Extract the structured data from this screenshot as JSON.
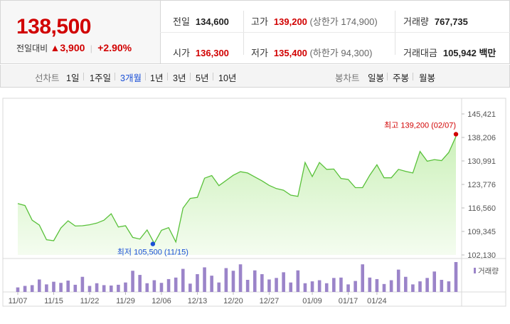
{
  "quote": {
    "price": "138,500",
    "change_label": "전일대비",
    "change_abs": "3,900",
    "change_pct": "+2.90%",
    "prev_close_label": "전일",
    "prev_close": "134,600",
    "high_label": "고가",
    "high": "139,200",
    "upper_limit": "(상한가 174,900)",
    "volume_label": "거래량",
    "volume": "767,735",
    "open_label": "시가",
    "open": "136,300",
    "low_label": "저가",
    "low": "135,400",
    "lower_limit": "(하한가 94,300)",
    "amount_label": "거래대금",
    "amount": "105,942",
    "amount_unit": "백만"
  },
  "toolbar": {
    "line_label": "선차트",
    "periods": [
      "1일",
      "1주일",
      "3개월",
      "1년",
      "3년",
      "5년",
      "10년"
    ],
    "active_period": "3개월",
    "candle_label": "봉차트",
    "candles": [
      "일봉",
      "주봉",
      "월봉"
    ]
  },
  "colors": {
    "up": "#d10000",
    "down": "#1a4fd6",
    "line": "#59c13a",
    "volume": "#9b84c9"
  },
  "chart_data": {
    "type": "area",
    "ylim": [
      102130,
      145421
    ],
    "y_ticks": [
      "145,421",
      "138,206",
      "130,991",
      "123,776",
      "116,560",
      "109,345",
      "102,130"
    ],
    "x_ticks": [
      "11/07",
      "11/15",
      "11/22",
      "11/29",
      "12/06",
      "12/13",
      "12/20",
      "12/27",
      "01/09",
      "01/17",
      "01/24"
    ],
    "max_label": "최고 139,200 (02/07)",
    "min_label": "최저 105,500 (11/15)",
    "volume_legend": "거래량",
    "series": [
      {
        "values": [
          117900,
          117300,
          112800,
          111300,
          106800,
          106500,
          110400,
          112600,
          111000,
          111100,
          111400,
          111900,
          112800,
          114800,
          110700,
          111100,
          107500,
          107000,
          109800,
          105700,
          109700,
          110500,
          106100,
          116500,
          119500,
          119800,
          125700,
          126500,
          123400,
          125000,
          126600,
          127700,
          127300,
          126100,
          124900,
          123500,
          122500,
          122000,
          120500,
          120100,
          130500,
          126200,
          130500,
          128400,
          128500,
          125600,
          125300,
          122800,
          122800,
          126600,
          129800,
          125800,
          125800,
          128400,
          127800,
          127300,
          133900,
          130900,
          131400,
          131100,
          133600,
          138500
        ]
      },
      {
        "name": "거래량",
        "values": [
          120,
          160,
          180,
          330,
          200,
          270,
          240,
          300,
          190,
          400,
          160,
          230,
          180,
          170,
          190,
          250,
          560,
          450,
          230,
          310,
          240,
          340,
          380,
          610,
          220,
          470,
          650,
          430,
          250,
          630,
          560,
          730,
          320,
          570,
          470,
          330,
          370,
          520,
          250,
          570,
          230,
          280,
          310,
          230,
          370,
          380,
          200,
          290,
          730,
          380,
          340,
          210,
          310,
          590,
          400,
          200,
          280,
          370,
          540,
          320,
          280,
          790
        ]
      }
    ]
  }
}
